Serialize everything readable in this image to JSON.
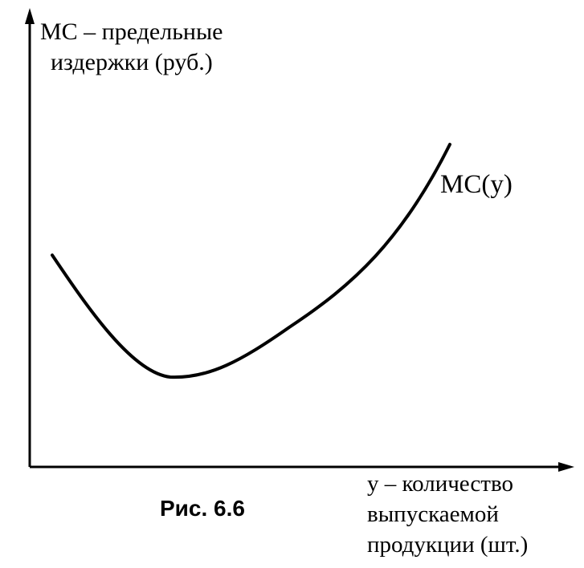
{
  "figure": {
    "y_axis_label_line1": "MC – предельные",
    "y_axis_label_line2": "издержки (руб.)",
    "x_axis_label_line1": "y – количество",
    "x_axis_label_line2": "выпускаемой",
    "x_axis_label_line3": "продукции (шт.)",
    "curve_label": "MC(y)",
    "caption": "Рис. 6.6"
  },
  "colors": {
    "ink": "#000000",
    "background": "#ffffff"
  }
}
